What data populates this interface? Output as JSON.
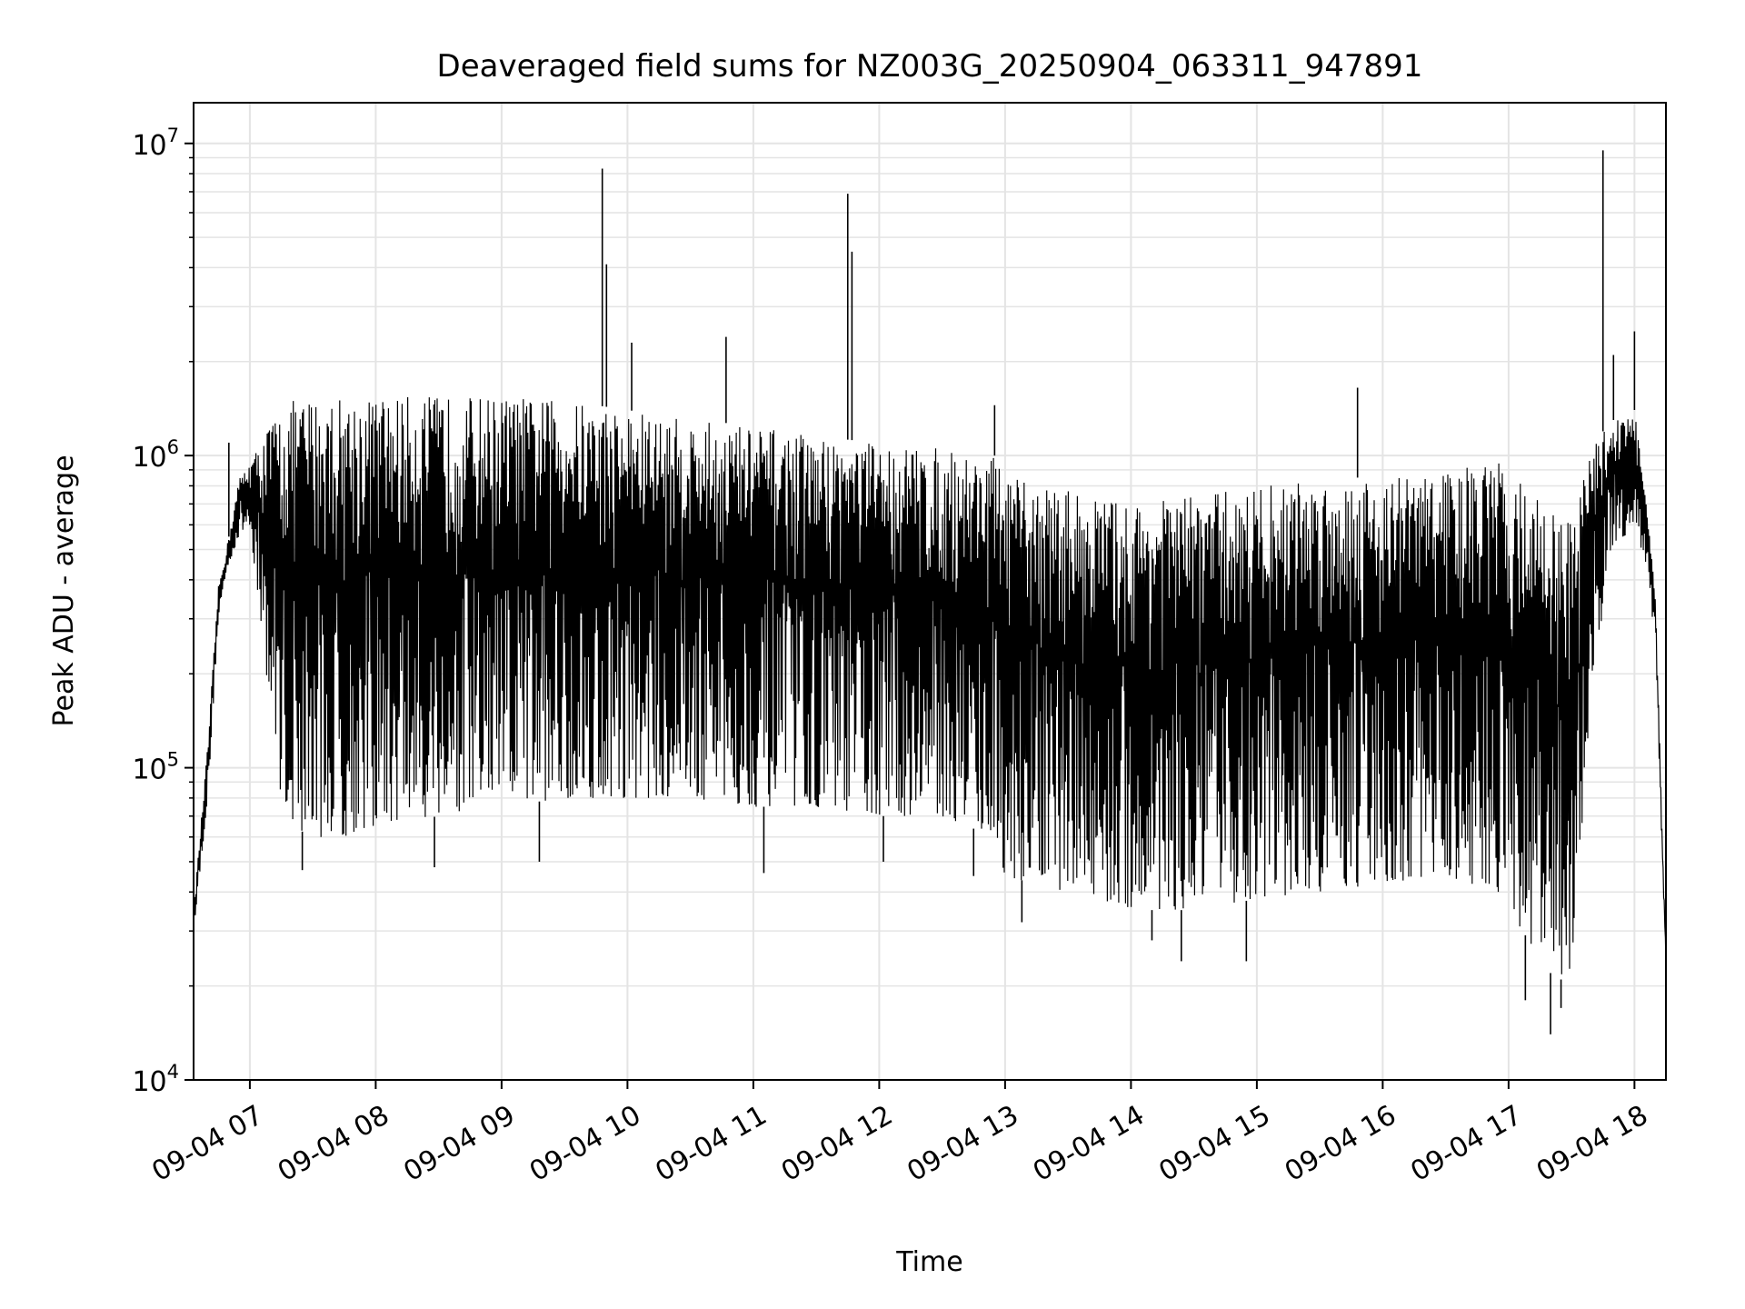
{
  "chart_data": {
    "type": "line",
    "title": "Deaveraged field sums for NZ003G_20250904_063311_947891",
    "xlabel": "Time",
    "ylabel": "Peak ADU - average",
    "yscale": "log",
    "ylim": [
      10000,
      13500000
    ],
    "xlim": [
      "2025-09-04T06:33:11",
      "2025-09-04T18:15:00"
    ],
    "grid": true,
    "x_ticks": [
      "09-04 07",
      "09-04 08",
      "09-04 09",
      "09-04 10",
      "09-04 11",
      "09-04 12",
      "09-04 13",
      "09-04 14",
      "09-04 15",
      "09-04 16",
      "09-04 17",
      "09-04 18"
    ],
    "y_ticks": [
      {
        "value": 10000,
        "base": "10",
        "exp": "4"
      },
      {
        "value": 100000,
        "base": "10",
        "exp": "5"
      },
      {
        "value": 1000000,
        "base": "10",
        "exp": "6"
      },
      {
        "value": 10000000,
        "base": "10",
        "exp": "7"
      }
    ],
    "envelope": {
      "x": [
        "2025-09-04T06:33:11",
        "2025-09-04T06:40",
        "2025-09-04T06:45",
        "2025-09-04T06:50",
        "2025-09-04T06:55",
        "2025-09-04T07:00",
        "2025-09-04T07:05",
        "2025-09-04T07:10",
        "2025-09-04T07:15",
        "2025-09-04T07:20",
        "2025-09-04T07:30",
        "2025-09-04T07:45",
        "2025-09-04T08:00",
        "2025-09-04T08:30",
        "2025-09-04T09:00",
        "2025-09-04T09:30",
        "2025-09-04T10:00",
        "2025-09-04T10:30",
        "2025-09-04T11:00",
        "2025-09-04T11:30",
        "2025-09-04T12:00",
        "2025-09-04T12:30",
        "2025-09-04T12:55",
        "2025-09-04T13:00",
        "2025-09-04T13:30",
        "2025-09-04T14:00",
        "2025-09-04T14:30",
        "2025-09-04T15:00",
        "2025-09-04T15:30",
        "2025-09-04T16:00",
        "2025-09-04T16:30",
        "2025-09-04T16:55",
        "2025-09-04T17:00",
        "2025-09-04T17:20",
        "2025-09-04T17:30",
        "2025-09-04T17:40",
        "2025-09-04T17:50",
        "2025-09-04T18:00",
        "2025-09-04T18:05",
        "2025-09-04T18:10",
        "2025-09-04T18:15"
      ],
      "high": [
        35000,
        120000,
        380000,
        550000,
        850000,
        950000,
        1100000,
        1300000,
        1400000,
        1500000,
        1550000,
        1550000,
        1550000,
        1550000,
        1550000,
        1500000,
        1400000,
        1300000,
        1250000,
        1150000,
        1100000,
        1050000,
        1000000,
        850000,
        780000,
        700000,
        750000,
        800000,
        850000,
        850000,
        900000,
        950000,
        900000,
        700000,
        600000,
        1100000,
        1300000,
        1400000,
        800000,
        350000,
        25000
      ],
      "low": [
        30000,
        80000,
        300000,
        450000,
        550000,
        600000,
        300000,
        150000,
        80000,
        65000,
        60000,
        60000,
        65000,
        70000,
        75000,
        80000,
        80000,
        80000,
        75000,
        75000,
        70000,
        70000,
        60000,
        45000,
        40000,
        35000,
        35000,
        38000,
        40000,
        42000,
        45000,
        40000,
        35000,
        22000,
        20000,
        200000,
        500000,
        600000,
        450000,
        250000,
        22000
      ]
    },
    "spikes": [
      {
        "x": "2025-09-04T06:50",
        "y": 1100000
      },
      {
        "x": "2025-09-04T09:48",
        "y": 8300000
      },
      {
        "x": "2025-09-04T09:50",
        "y": 4100000
      },
      {
        "x": "2025-09-04T10:02",
        "y": 2300000
      },
      {
        "x": "2025-09-04T10:47",
        "y": 2400000
      },
      {
        "x": "2025-09-04T11:45",
        "y": 6900000
      },
      {
        "x": "2025-09-04T11:47",
        "y": 4500000
      },
      {
        "x": "2025-09-04T12:55",
        "y": 1450000
      },
      {
        "x": "2025-09-04T15:48",
        "y": 1650000
      },
      {
        "x": "2025-09-04T17:45",
        "y": 9500000
      },
      {
        "x": "2025-09-04T17:50",
        "y": 2100000
      },
      {
        "x": "2025-09-04T18:00",
        "y": 2500000
      }
    ],
    "dips": [
      {
        "x": "2025-09-04T07:25",
        "y": 47000
      },
      {
        "x": "2025-09-04T08:28",
        "y": 48000
      },
      {
        "x": "2025-09-04T09:18",
        "y": 50000
      },
      {
        "x": "2025-09-04T11:05",
        "y": 46000
      },
      {
        "x": "2025-09-04T12:02",
        "y": 50000
      },
      {
        "x": "2025-09-04T12:45",
        "y": 45000
      },
      {
        "x": "2025-09-04T13:08",
        "y": 32000
      },
      {
        "x": "2025-09-04T14:10",
        "y": 28000
      },
      {
        "x": "2025-09-04T14:24",
        "y": 24000
      },
      {
        "x": "2025-09-04T14:55",
        "y": 24000
      },
      {
        "x": "2025-09-04T17:08",
        "y": 18000
      },
      {
        "x": "2025-09-04T17:20",
        "y": 14000
      },
      {
        "x": "2025-09-04T17:25",
        "y": 17000
      }
    ]
  }
}
